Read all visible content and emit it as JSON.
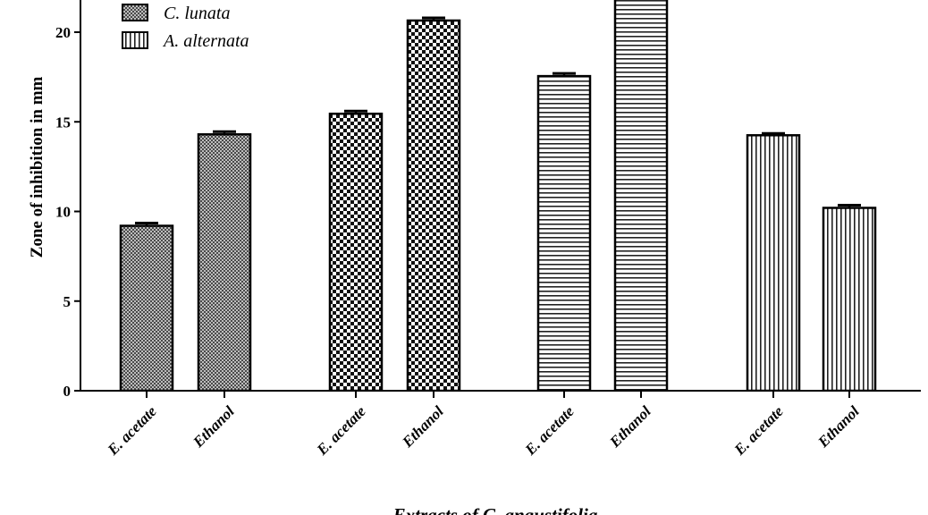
{
  "chart_data": {
    "type": "bar",
    "ylabel": "Zone of inhibition in mm",
    "xlabel": "Extracts of C. angustifolia",
    "ylim": [
      0,
      22
    ],
    "yticks": [
      0,
      5,
      10,
      15,
      20
    ],
    "grid": false,
    "legend_position": "top-left",
    "legend": [
      {
        "label": "C. lunata",
        "pattern": "fine-crosshatch"
      },
      {
        "label": "A. alternata",
        "pattern": "vertical-lines"
      }
    ],
    "bars": [
      {
        "label": "E. acetate",
        "value": 9.2,
        "error": 0.15,
        "pattern": "fine-crosshatch"
      },
      {
        "label": "Ethanol",
        "value": 14.3,
        "error": 0.15,
        "pattern": "fine-crosshatch"
      },
      {
        "label": "E. acetate",
        "value": 15.45,
        "error": 0.15,
        "pattern": "checker"
      },
      {
        "label": "Ethanol",
        "value": 20.65,
        "error": 0.15,
        "pattern": "checker"
      },
      {
        "label": "E. acetate",
        "value": 17.55,
        "error": 0.15,
        "pattern": "horizontal-lines"
      },
      {
        "label": "Ethanol",
        "value": 22.0,
        "error": 0.15,
        "pattern": "horizontal-lines"
      },
      {
        "label": "E. acetate",
        "value": 14.25,
        "error": 0.1,
        "pattern": "vertical-lines"
      },
      {
        "label": "Ethanol",
        "value": 10.2,
        "error": 0.15,
        "pattern": "vertical-lines"
      }
    ]
  }
}
